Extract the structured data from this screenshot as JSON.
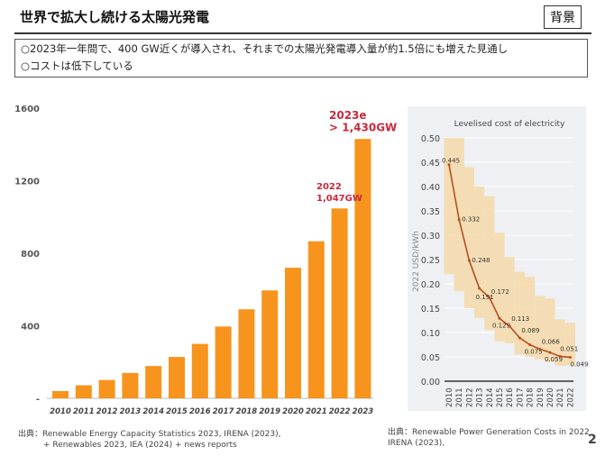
{
  "header": {
    "title": "世界で拡大し続ける太陽光発電",
    "tag": "背景"
  },
  "points": [
    "○2023年一年間で、400 GW近くが導入され、それまでの太陽光発電導入量が約1.5倍にも増えた見通し",
    "○コストは低下している"
  ],
  "chart_data": [
    {
      "type": "bar",
      "categories": [
        "2010",
        "2011",
        "2012",
        "2013",
        "2014",
        "2015",
        "2016",
        "2017",
        "2018",
        "2019",
        "2020",
        "2021",
        "2022",
        "2023"
      ],
      "values": [
        40,
        72,
        101,
        140,
        178,
        228,
        300,
        396,
        491,
        595,
        720,
        866,
        1047,
        1430
      ],
      "ylim": [
        0,
        1600
      ],
      "yticks": [
        "-",
        "400",
        "800",
        "1200",
        "1600"
      ],
      "color": "#f7941d",
      "annotations": [
        {
          "lines": [
            "2022",
            "1,047GW"
          ]
        },
        {
          "lines": [
            "2023e",
            "> 1,430GW"
          ]
        }
      ],
      "annotation_color": "#c8283c"
    },
    {
      "type": "line",
      "title": "Levelised cost of electricity",
      "ylabel": "2022 USD/kWh",
      "categories": [
        "2010",
        "2011",
        "2012",
        "2013",
        "2014",
        "2015",
        "2016",
        "2017",
        "2018",
        "2019",
        "2020",
        "2021",
        "2022"
      ],
      "values": [
        0.445,
        0.332,
        0.248,
        0.191,
        0.172,
        0.129,
        0.113,
        0.089,
        0.075,
        0.066,
        0.059,
        0.051,
        0.049
      ],
      "labels": [
        "0.445",
        "0.332",
        "0.248",
        "0.191",
        "0.172",
        "0.129",
        "0.113",
        "0.089",
        "0.075",
        "0.066",
        "0.059",
        "0.051",
        "0.049"
      ],
      "range_upper": [
        0.5,
        0.5,
        0.44,
        0.4,
        0.38,
        0.305,
        0.255,
        0.225,
        0.215,
        0.175,
        0.17,
        0.127,
        0.12
      ],
      "range_lower": [
        0.22,
        0.185,
        0.15,
        0.13,
        0.105,
        0.082,
        0.078,
        0.055,
        0.05,
        0.045,
        0.04,
        0.032,
        0.032
      ],
      "ylim": [
        0,
        0.5
      ],
      "yticks": [
        "0.00",
        "0.05",
        "0.10",
        "0.15",
        "0.20",
        "0.25",
        "0.30",
        "0.35",
        "0.40",
        "0.45",
        "0.50"
      ],
      "line_color": "#b5501e",
      "band_color": "#f5d9a8",
      "bg": "#eef0f3"
    }
  ],
  "sources": {
    "left": [
      "出典：Renewable Energy Capacity Statistics 2023, IRENA (2023),",
      "+ Renewables 2023, IEA (2024) + news reports"
    ],
    "right": [
      "出典：Renewable Power Generation Costs in 2022",
      "IRENA (2023),"
    ]
  },
  "page": "2"
}
